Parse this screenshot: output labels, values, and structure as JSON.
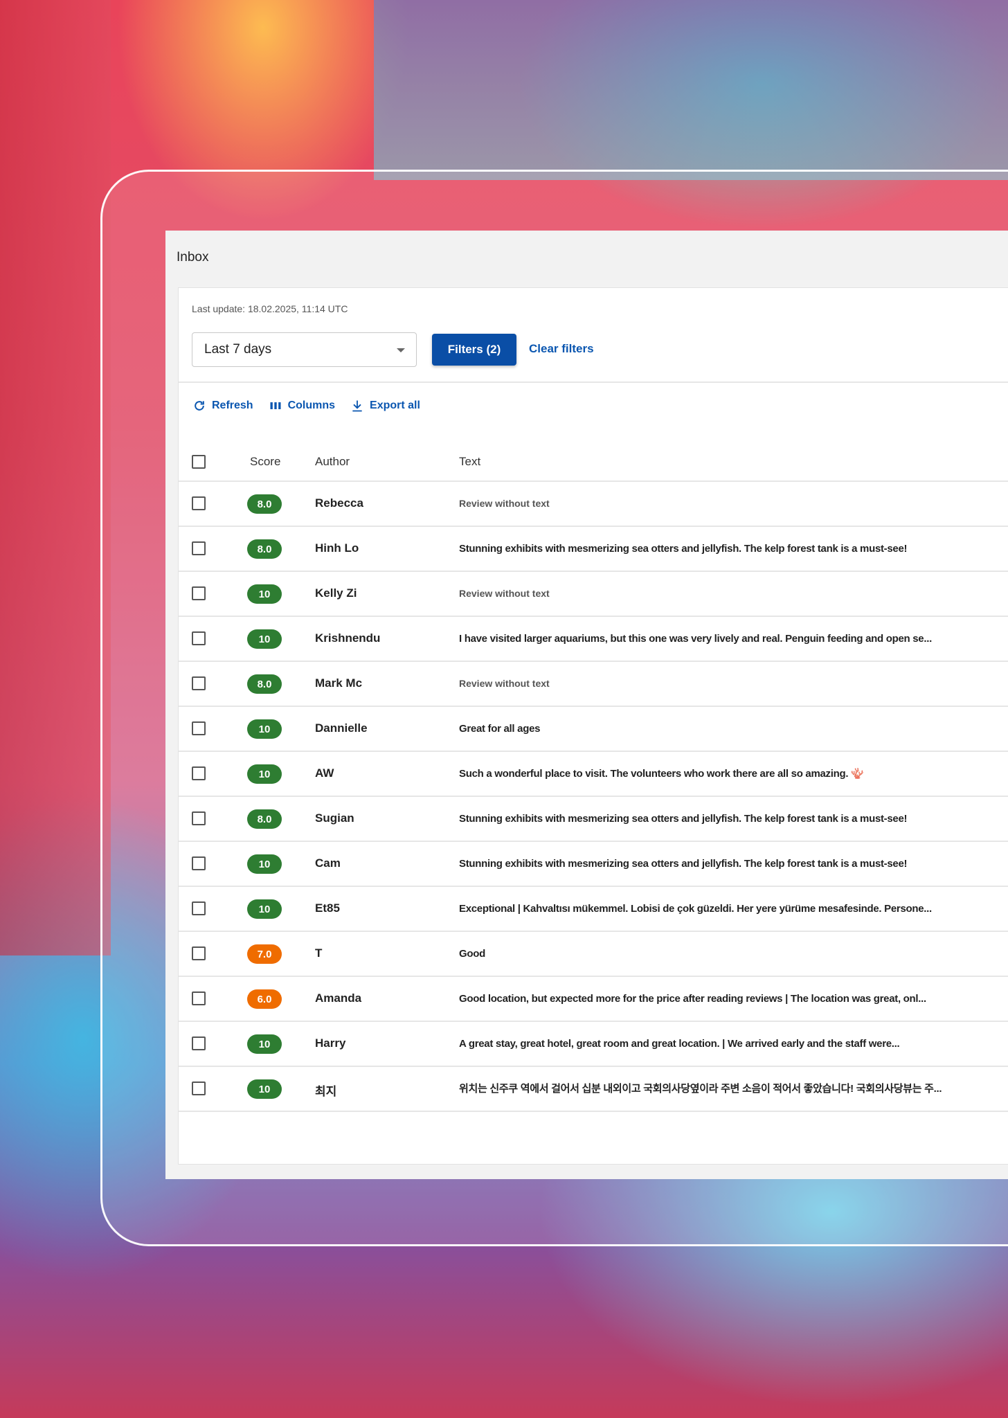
{
  "app": {
    "title": "Inbox"
  },
  "header": {
    "last_update": "Last update: 18.02.2025, 11:14 UTC",
    "period_select": "Last 7 days",
    "filters_button": "Filters (2)",
    "clear_filters": "Clear filters"
  },
  "toolbar": {
    "refresh": "Refresh",
    "columns": "Columns",
    "export": "Export all"
  },
  "table": {
    "columns": [
      "Score",
      "Author",
      "Text"
    ],
    "rows": [
      {
        "score": "8.0",
        "color": "#2e7d32",
        "author": "Rebecca",
        "text": "Review without text",
        "muted": true
      },
      {
        "score": "8.0",
        "color": "#2e7d32",
        "author": "Hinh Lo",
        "text": "Stunning exhibits with mesmerizing sea otters and jellyfish. The kelp forest tank is a must-see!"
      },
      {
        "score": "10",
        "color": "#2e7d32",
        "author": "Kelly Zi",
        "text": "Review without text",
        "muted": true
      },
      {
        "score": "10",
        "color": "#2e7d32",
        "author": "Krishnendu",
        "text": "I have visited larger aquariums, but this one was very lively and real. Penguin feeding and open se..."
      },
      {
        "score": "8.0",
        "color": "#2e7d32",
        "author": "Mark Mc",
        "text": "Review without text",
        "muted": true
      },
      {
        "score": "10",
        "color": "#2e7d32",
        "author": "Dannielle",
        "text": "Great for all ages"
      },
      {
        "score": "10",
        "color": "#2e7d32",
        "author": "AW",
        "text": "Such a wonderful place to visit. The volunteers who work there are all so amazing. 🪸"
      },
      {
        "score": "8.0",
        "color": "#2e7d32",
        "author": "Sugian",
        "text": "Stunning exhibits with mesmerizing sea otters and jellyfish. The kelp forest tank is a must-see!"
      },
      {
        "score": "10",
        "color": "#2e7d32",
        "author": "Cam",
        "text": "Stunning exhibits with mesmerizing sea otters and jellyfish. The kelp forest tank is a must-see!"
      },
      {
        "score": "10",
        "color": "#2e7d32",
        "author": "Et85",
        "text": "Exceptional | Kahvaltısı mükemmel. Lobisi de çok güzeldi. Her yere yürüme mesafesinde. Persone..."
      },
      {
        "score": "7.0",
        "color": "#ef6c00",
        "author": "T",
        "text": "Good"
      },
      {
        "score": "6.0",
        "color": "#ef6c00",
        "author": "Amanda",
        "text": "Good location, but expected more for the price after reading reviews | The location was great, onl..."
      },
      {
        "score": "10",
        "color": "#2e7d32",
        "author": "Harry",
        "text": "A great stay, great hotel, great room and great location. | We arrived early and the staff were..."
      },
      {
        "score": "10",
        "color": "#2e7d32",
        "author": "최지",
        "text": "위치는 신주쿠 역에서 걸어서 십분 내외이고 국회의사당옆이라 주변 소음이 적어서 좋았습니다! 국회의사당뷰는 주..."
      }
    ]
  }
}
